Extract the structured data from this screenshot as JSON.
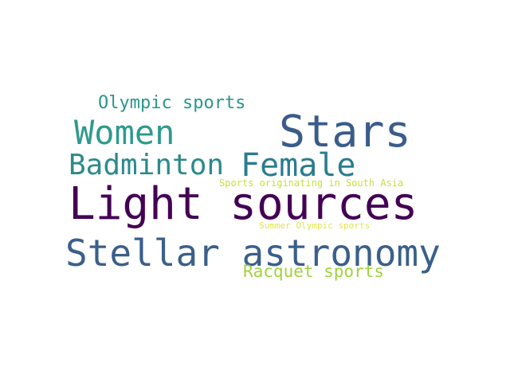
{
  "words": [
    {
      "key": "light_sources",
      "text": "Light sources",
      "color": "#440154"
    },
    {
      "key": "stars",
      "text": "Stars",
      "color": "#3b5c8b"
    },
    {
      "key": "stellar_astronomy",
      "text": "Stellar astronomy",
      "color": "#3b5f8a"
    },
    {
      "key": "women",
      "text": "Women",
      "color": "#2e9a8c"
    },
    {
      "key": "female",
      "text": "Female",
      "color": "#2b7c8e"
    },
    {
      "key": "badminton",
      "text": "Badminton",
      "color": "#2c8a8a"
    },
    {
      "key": "olympic_sports",
      "text": "Olympic sports",
      "color": "#2b968a"
    },
    {
      "key": "racquet_sports",
      "text": "Racquet sports",
      "color": "#9fd33b"
    },
    {
      "key": "sports_originating_south_asia",
      "text": "Sports originating in South Asia",
      "color": "#c6e23a"
    },
    {
      "key": "summer_olympic_sports",
      "text": "Summer Olympic sports",
      "color": "#dfe54a"
    }
  ]
}
